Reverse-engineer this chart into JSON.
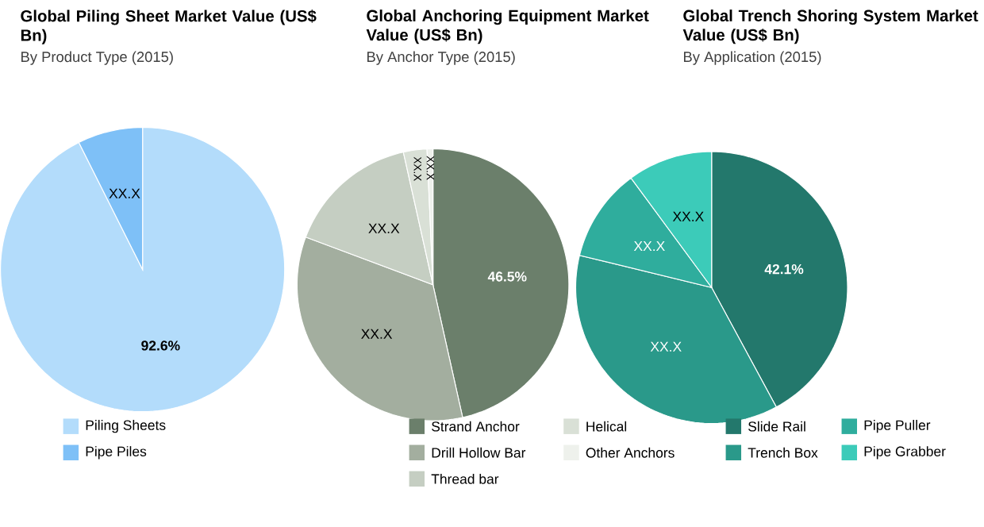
{
  "chart_data": [
    {
      "type": "pie",
      "title": "Global Piling Sheet Market Value (US$ Bn)",
      "subtitle": "By Product Type (2015)",
      "categories": [
        "Piling Sheets",
        "Pipe Piles"
      ],
      "values": [
        92.6,
        7.4
      ],
      "colors": [
        "#b3dcfb",
        "#7ec0f7"
      ],
      "value_labels": [
        "92.6%",
        "XX.X"
      ],
      "legend": "bottom"
    },
    {
      "type": "pie",
      "title": "Global Anchoring Equipment Market Value (US$ Bn)",
      "subtitle": "By Anchor Type (2015)",
      "categories": [
        "Strand Anchor",
        "Drill Hollow Bar",
        "Thread bar",
        "Helical",
        "Other Anchors"
      ],
      "values": [
        46.5,
        34.2,
        15.8,
        2.8,
        0.7
      ],
      "colors": [
        "#6b7f6b",
        "#a3ae9f",
        "#c5cec2",
        "#d9e0d6",
        "#eef1ec"
      ],
      "value_labels": [
        "46.5%",
        "XX.X",
        "XX.X",
        "XX.X",
        "XX.X"
      ],
      "legend": "bottom"
    },
    {
      "type": "pie",
      "title": "Global Trench Shoring System Market Value (US$ Bn)",
      "subtitle": "By Application (2015)",
      "categories": [
        "Slide Rail",
        "Trench Box",
        "Pipe Puller",
        "Pipe Grabber"
      ],
      "values": [
        42.1,
        36.7,
        11.1,
        10.1
      ],
      "colors": [
        "#23786c",
        "#2a998a",
        "#2fad9d",
        "#3ccbb9"
      ],
      "value_labels": [
        "42.1%",
        "XX.X",
        "XX.X",
        "XX.X"
      ],
      "legend": "bottom"
    }
  ]
}
